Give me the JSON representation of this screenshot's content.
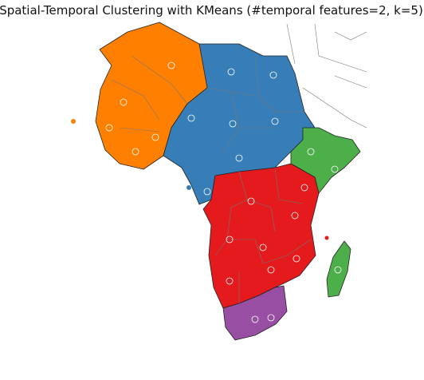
{
  "title": "Spatial-Temporal Clustering with KMeans (#temporal features=2, k=5)"
}
